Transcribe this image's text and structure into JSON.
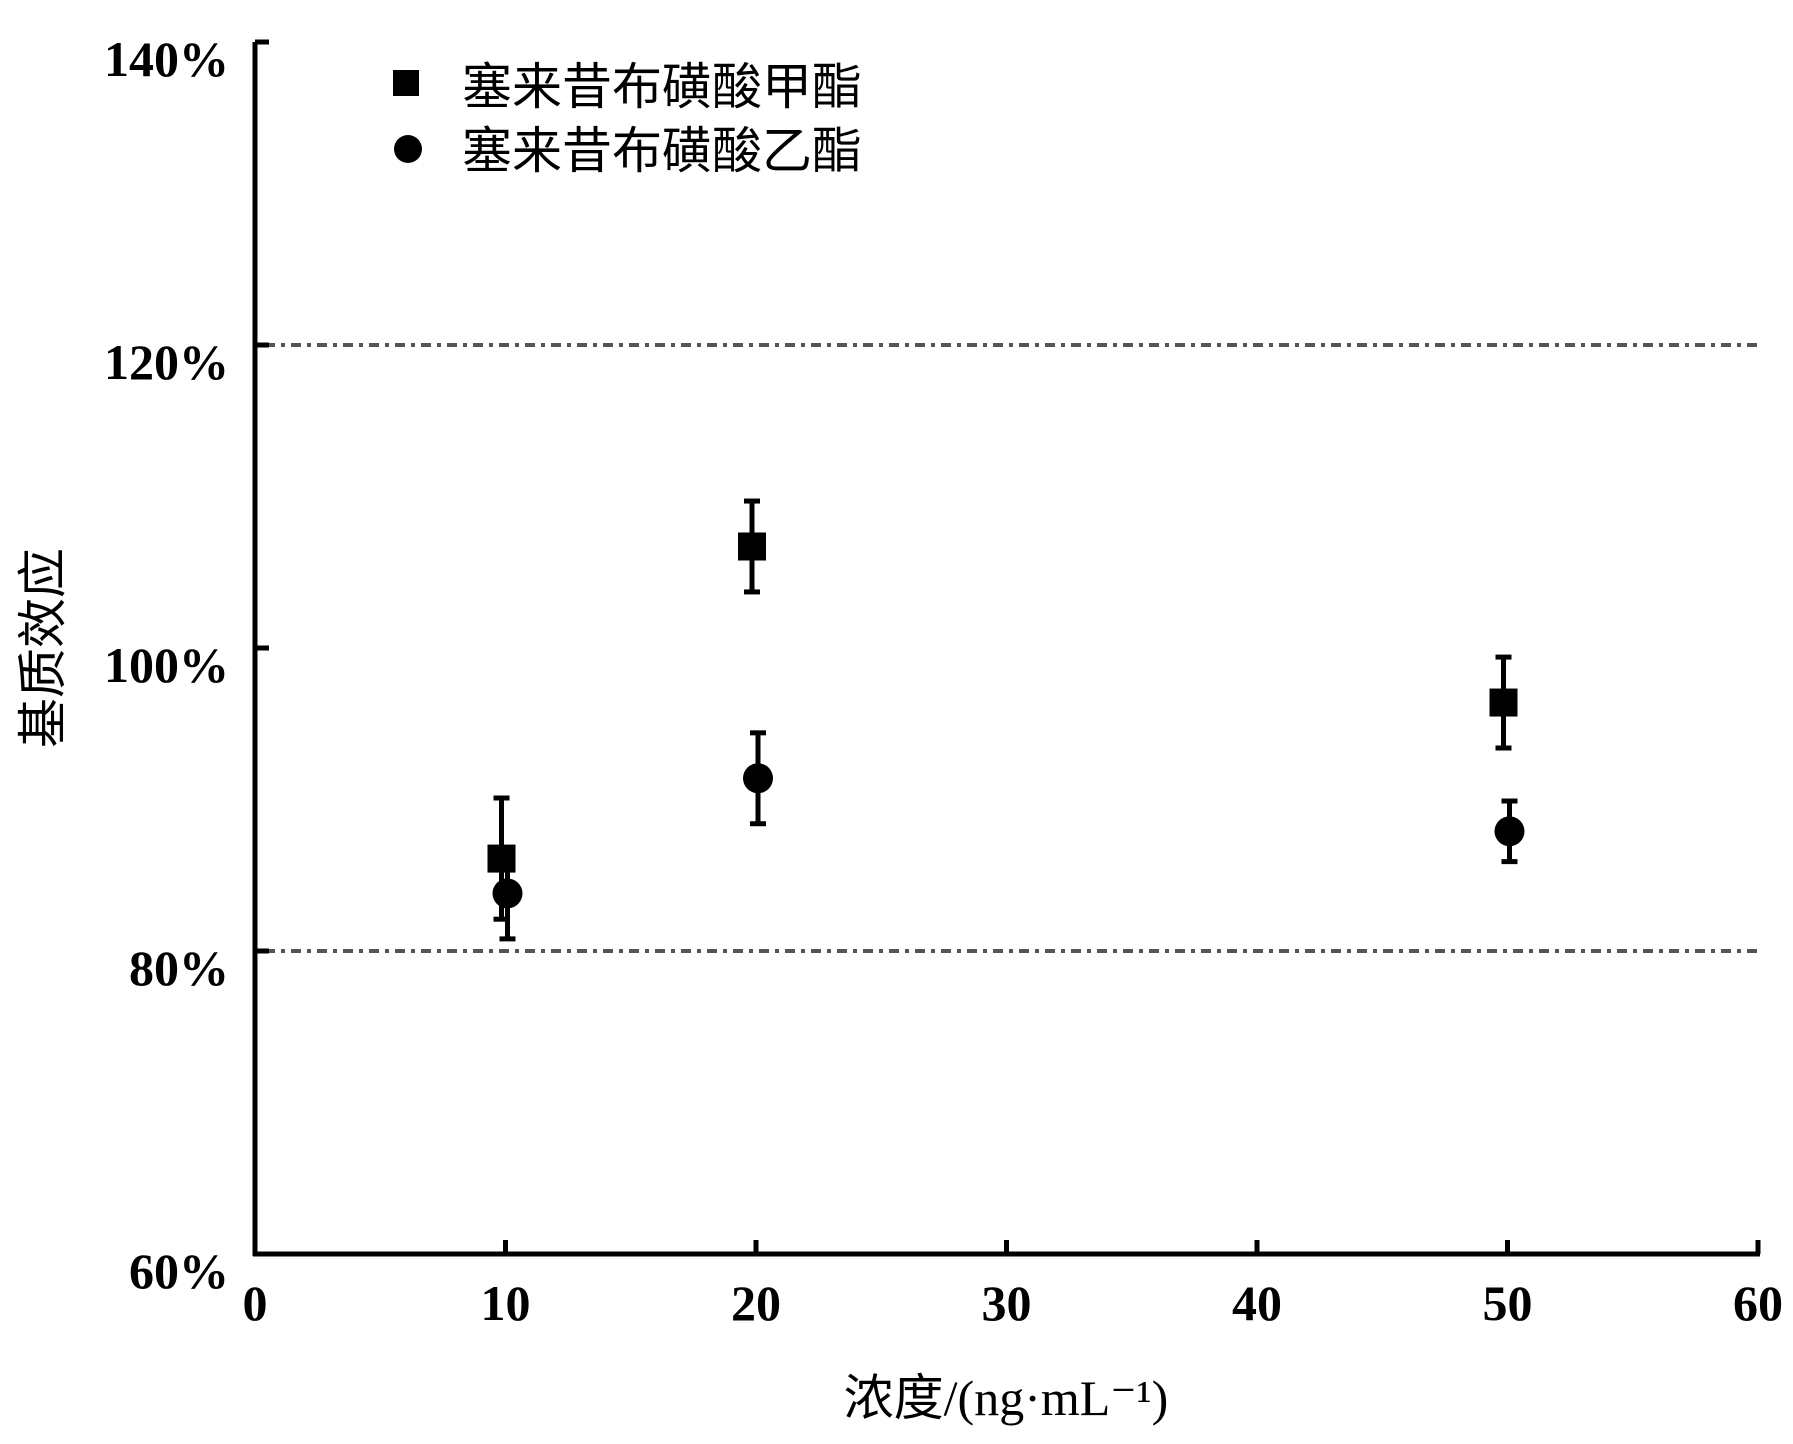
{
  "chart_data": {
    "type": "scatter",
    "title": "",
    "xlabel": "浓度/(ng·mL⁻¹)",
    "ylabel": "基质效应",
    "xlim": [
      0,
      60
    ],
    "ylim": [
      60,
      140
    ],
    "x_ticks": [
      "0",
      "10",
      "20",
      "30",
      "40",
      "50",
      "60"
    ],
    "y_ticks": [
      "60%",
      "80%",
      "100%",
      "120%",
      "140%"
    ],
    "reference_lines": [
      80,
      120
    ],
    "grid": false,
    "legend_position": "top-left",
    "series": [
      {
        "name": "塞来昔布磺酸甲酯",
        "marker": "square",
        "x": [
          10,
          20,
          50
        ],
        "y": [
          86.1,
          106.7,
          96.4
        ],
        "error": [
          4.0,
          3.0,
          3.0
        ]
      },
      {
        "name": "塞来昔布磺酸乙酯",
        "marker": "circle",
        "x": [
          10,
          20,
          50
        ],
        "y": [
          83.8,
          91.4,
          87.9
        ],
        "error": [
          3.0,
          3.0,
          2.0
        ]
      }
    ],
    "colors": {
      "marker": "#000000",
      "reference_line": "#555555"
    }
  }
}
